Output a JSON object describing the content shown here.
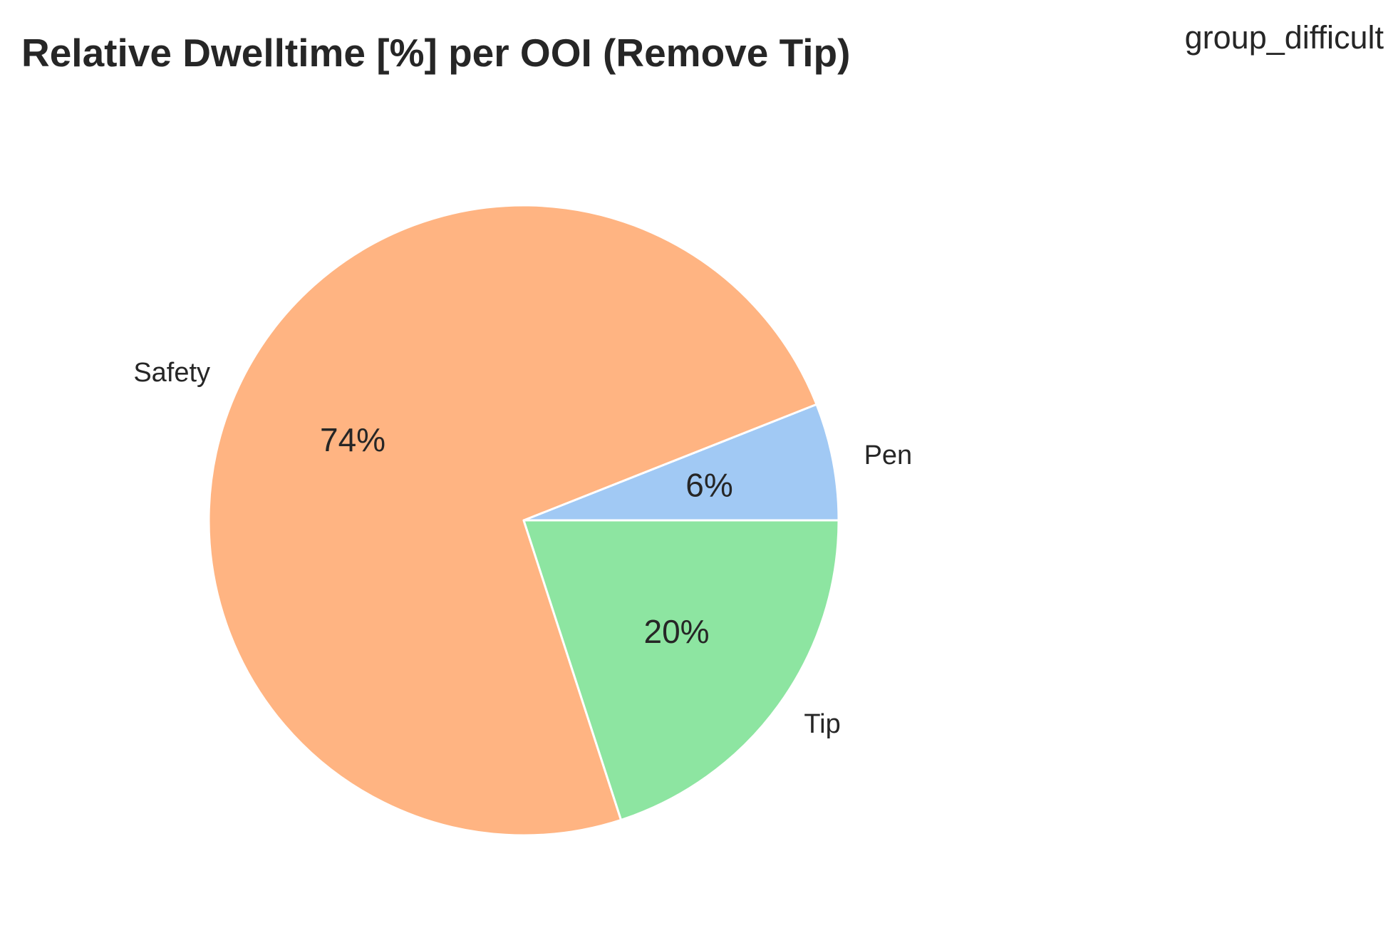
{
  "chart_data": {
    "type": "pie",
    "title": "Relative Dwelltime [%] per OOI (Remove Tip)",
    "group_label": "group_difficult",
    "categories": [
      "Pen",
      "Safety",
      "Tip"
    ],
    "values": [
      6,
      74,
      20
    ],
    "value_labels": [
      "6%",
      "74%",
      "20%"
    ],
    "colors": [
      "#a1c9f4",
      "#ffb482",
      "#8de5a1"
    ],
    "edge_color": "#ffffff",
    "start_angle_deg": 0,
    "direction": "counterclockwise"
  }
}
